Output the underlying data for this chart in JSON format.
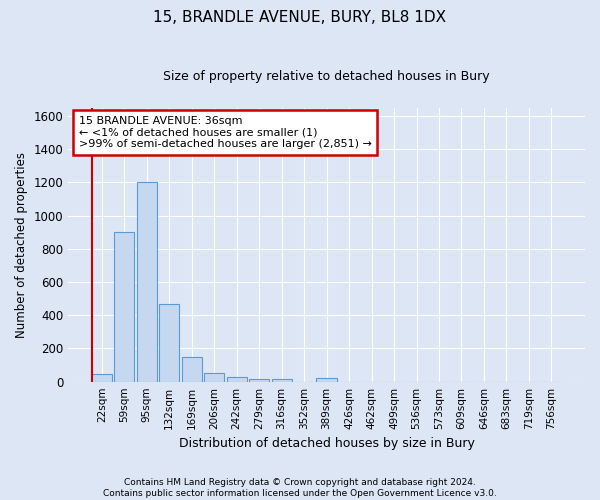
{
  "title": "15, BRANDLE AVENUE, BURY, BL8 1DX",
  "subtitle": "Size of property relative to detached houses in Bury",
  "xlabel": "Distribution of detached houses by size in Bury",
  "ylabel": "Number of detached properties",
  "footer_line1": "Contains HM Land Registry data © Crown copyright and database right 2024.",
  "footer_line2": "Contains public sector information licensed under the Open Government Licence v3.0.",
  "annotation_line1": "15 BRANDLE AVENUE: 36sqm",
  "annotation_line2": "← <1% of detached houses are smaller (1)",
  "annotation_line3": ">99% of semi-detached houses are larger (2,851) →",
  "bar_color": "#c5d8f0",
  "bar_edge_color": "#5b9bd5",
  "highlight_color": "#cc0000",
  "categories": [
    "22sqm",
    "59sqm",
    "95sqm",
    "132sqm",
    "169sqm",
    "206sqm",
    "242sqm",
    "279sqm",
    "316sqm",
    "352sqm",
    "389sqm",
    "426sqm",
    "462sqm",
    "499sqm",
    "536sqm",
    "573sqm",
    "609sqm",
    "646sqm",
    "683sqm",
    "719sqm",
    "756sqm"
  ],
  "values": [
    45,
    900,
    1200,
    470,
    150,
    50,
    30,
    15,
    15,
    0,
    20,
    0,
    0,
    0,
    0,
    0,
    0,
    0,
    0,
    0,
    0
  ],
  "ylim": [
    0,
    1650
  ],
  "yticks": [
    0,
    200,
    400,
    600,
    800,
    1000,
    1200,
    1400,
    1600
  ],
  "bg_color": "#dce6f5",
  "plot_bg_color": "#dce6f5",
  "grid_color": "#ffffff",
  "annotation_box_color": "#cc0000",
  "figsize": [
    6.0,
    5.0
  ],
  "dpi": 100
}
